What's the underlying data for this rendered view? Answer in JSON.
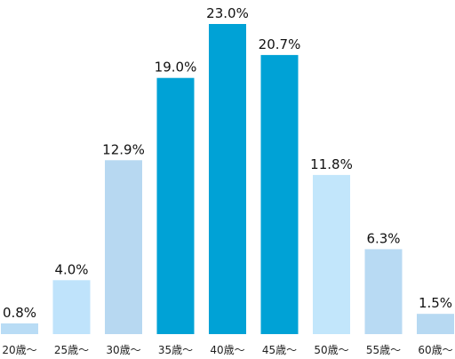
{
  "chart_data": {
    "type": "bar",
    "categories": [
      "20歳〜",
      "25歳〜",
      "30歳〜",
      "35歳〜",
      "40歳〜",
      "45歳〜",
      "50歳〜",
      "55歳〜",
      "60歳〜"
    ],
    "values": [
      0.8,
      4.0,
      12.9,
      19.0,
      23.0,
      20.7,
      11.8,
      6.3,
      1.5
    ],
    "value_labels": [
      "0.8%",
      "4.0%",
      "12.9%",
      "19.0%",
      "23.0%",
      "20.7%",
      "11.8%",
      "6.3%",
      "1.5%"
    ],
    "title": "",
    "xlabel": "",
    "ylabel": "",
    "ylim": [
      0,
      23.0
    ],
    "grid": false,
    "legend": "none",
    "bar_colors": [
      "#b9dcf5",
      "#bfe3fb",
      "#b7d8f1",
      "#00a2d6",
      "#00a2d6",
      "#00a2d6",
      "#c2e6fb",
      "#b8daf3",
      "#b7d9f2"
    ]
  }
}
